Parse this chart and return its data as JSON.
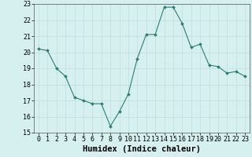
{
  "x": [
    0,
    1,
    2,
    3,
    4,
    5,
    6,
    7,
    8,
    9,
    10,
    11,
    12,
    13,
    14,
    15,
    16,
    17,
    18,
    19,
    20,
    21,
    22,
    23
  ],
  "y": [
    20.2,
    20.1,
    19.0,
    18.5,
    17.2,
    17.0,
    16.8,
    16.8,
    15.4,
    16.3,
    17.4,
    19.6,
    21.1,
    21.1,
    22.8,
    22.8,
    21.8,
    20.3,
    20.5,
    19.2,
    19.1,
    18.7,
    18.8,
    18.5
  ],
  "xlabel": "Humidex (Indice chaleur)",
  "ylim": [
    15,
    23
  ],
  "yticks": [
    15,
    16,
    17,
    18,
    19,
    20,
    21,
    22,
    23
  ],
  "xticks": [
    0,
    1,
    2,
    3,
    4,
    5,
    6,
    7,
    8,
    9,
    10,
    11,
    12,
    13,
    14,
    15,
    16,
    17,
    18,
    19,
    20,
    21,
    22,
    23
  ],
  "line_color": "#2e7d6e",
  "marker_color": "#2e7d6e",
  "bg_color": "#d6f0f0",
  "grid_color": "#c0dede",
  "xlabel_fontsize": 7.5,
  "tick_fontsize": 6.0,
  "figsize": [
    3.2,
    2.0
  ],
  "dpi": 100
}
